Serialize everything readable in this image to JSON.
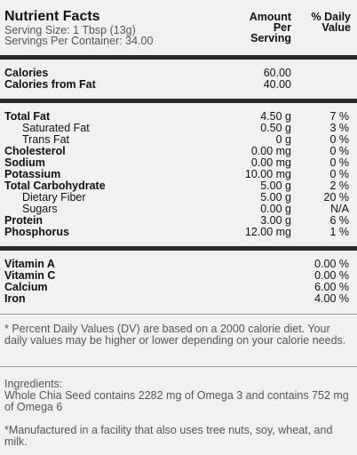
{
  "header": {
    "title": "Nutrient Facts",
    "serving_size": "Serving Size: 1 Tbsp (13g)",
    "servings_per_container": "Servings Per Container: 34.00",
    "amount_heading": "Amount Per Serving",
    "dv_heading": "% Daily Value"
  },
  "calories": [
    {
      "name": "Calories",
      "amount": "60.00"
    },
    {
      "name": "Calories from Fat",
      "amount": "40.00"
    }
  ],
  "nutrients": [
    {
      "name": "Total Fat",
      "amount": "4.50 g",
      "dv": "7 %",
      "sub": [
        {
          "name": "Saturated Fat",
          "amount": "0.50 g",
          "dv": "3 %"
        },
        {
          "name": "Trans Fat",
          "amount": "0 g",
          "dv": "0 %"
        }
      ]
    },
    {
      "name": "Cholesterol",
      "amount": "0.00 mg",
      "dv": "0 %"
    },
    {
      "name": "Sodium",
      "amount": "0.00 mg",
      "dv": "0 %"
    },
    {
      "name": "Potassium",
      "amount": "10.00 mg",
      "dv": "0 %"
    },
    {
      "name": "Total Carbohydrate",
      "amount": "5.00 g",
      "dv": "2 %",
      "sub": [
        {
          "name": "Dietary Fiber",
          "amount": "5.00 g",
          "dv": "20 %"
        },
        {
          "name": "Sugars",
          "amount": "0.00 g",
          "dv": "N/A"
        }
      ]
    },
    {
      "name": "Protein",
      "amount": "3.00 g",
      "dv": "6 %"
    },
    {
      "name": "Phosphorus",
      "amount": "12.00 mg",
      "dv": "1 %"
    }
  ],
  "vitamins": [
    {
      "name": "Vitamin A",
      "dv": "0.00 %"
    },
    {
      "name": "Vitamin C",
      "dv": "0.00 %"
    },
    {
      "name": "Calcium",
      "dv": "6.00 %"
    },
    {
      "name": "Iron",
      "dv": "4.00 %"
    }
  ],
  "footnote": "* Percent Daily Values (DV) are based on a 2000 calorie diet. Your daily values may be higher or lower depending on your calorie needs.",
  "ingredients": {
    "heading": "Ingredients:",
    "text": "Whole Chia Seed contains 2282 mg of Omega 3 and contains 752 mg of Omega 6"
  },
  "allergen_note": "*Manufactured in a facility that also uses tree nuts, soy, wheat, and milk."
}
